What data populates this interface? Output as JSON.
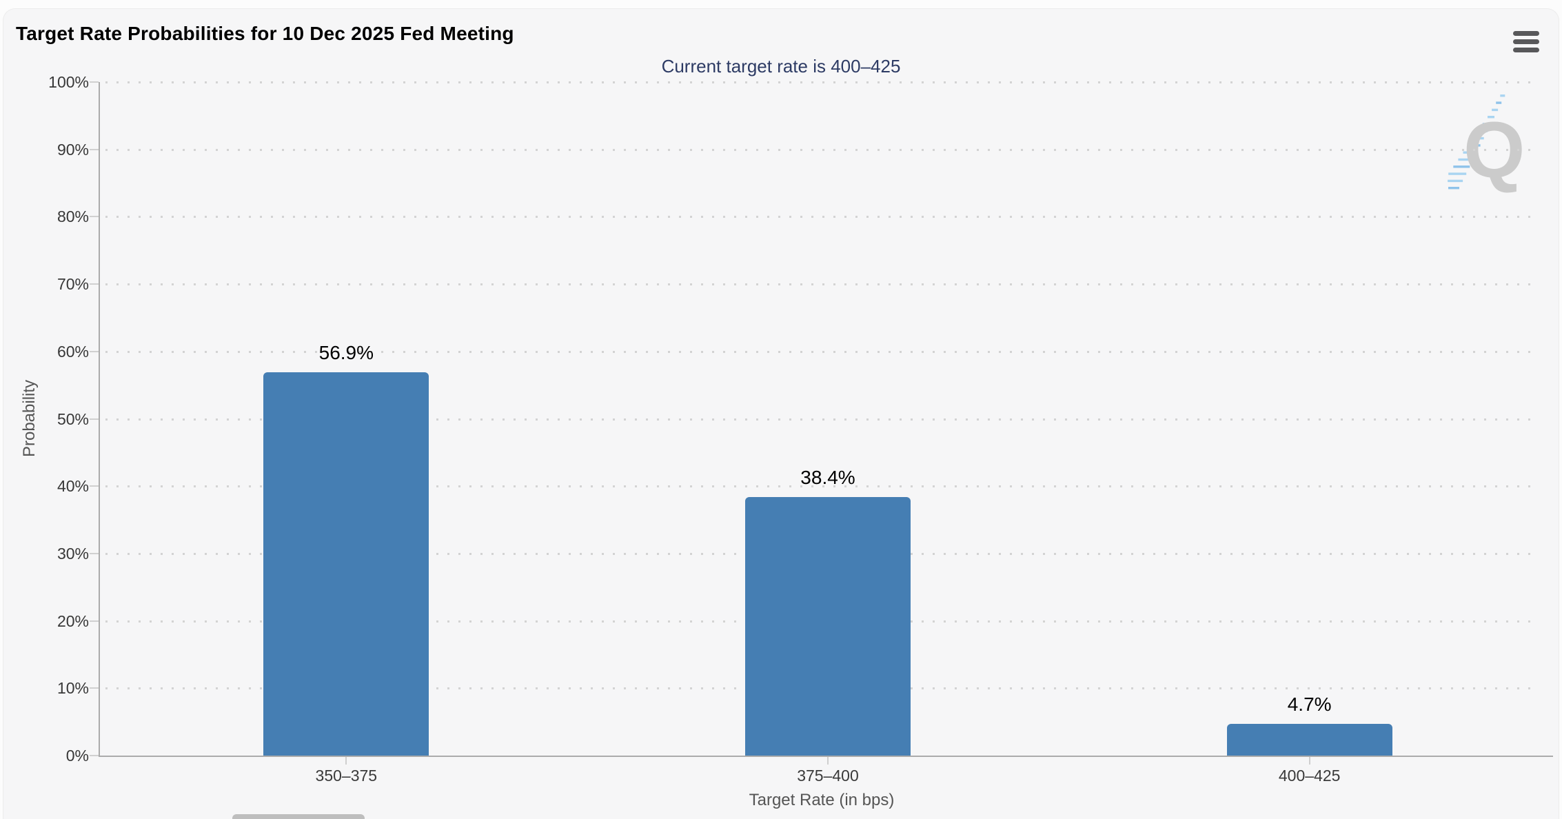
{
  "chart_data": {
    "type": "bar",
    "title": "Target Rate Probabilities for 10 Dec 2025 Fed Meeting",
    "subtitle": "Current target rate is 400–425",
    "categories": [
      "350–375",
      "375–400",
      "400–425"
    ],
    "values": [
      56.9,
      38.4,
      4.7
    ],
    "value_labels": [
      "56.9%",
      "38.4%",
      "4.7%"
    ],
    "xlabel": "Target Rate (in bps)",
    "ylabel": "Probability",
    "ylim": [
      0,
      100
    ],
    "ytick_step": 10,
    "ytick_labels": [
      "0%",
      "10%",
      "20%",
      "30%",
      "40%",
      "50%",
      "60%",
      "70%",
      "80%",
      "90%",
      "100%"
    ],
    "grid": "dotted-horizontal",
    "legend": "none",
    "watermark": "Q"
  },
  "toolbar": {
    "menu_icon": "hamburger-context-menu"
  },
  "colors": {
    "bar": "#457eb3",
    "title": "#000000",
    "subtitle": "#2d3b64",
    "axis_line": "#ababab",
    "grid_dot": "#d3d3d3",
    "axis_label": "#383838",
    "axis_title": "#555555",
    "background": "#f6f6f7",
    "watermark_gray": "#cbcbcb",
    "watermark_blue": "#a9d4f1"
  }
}
